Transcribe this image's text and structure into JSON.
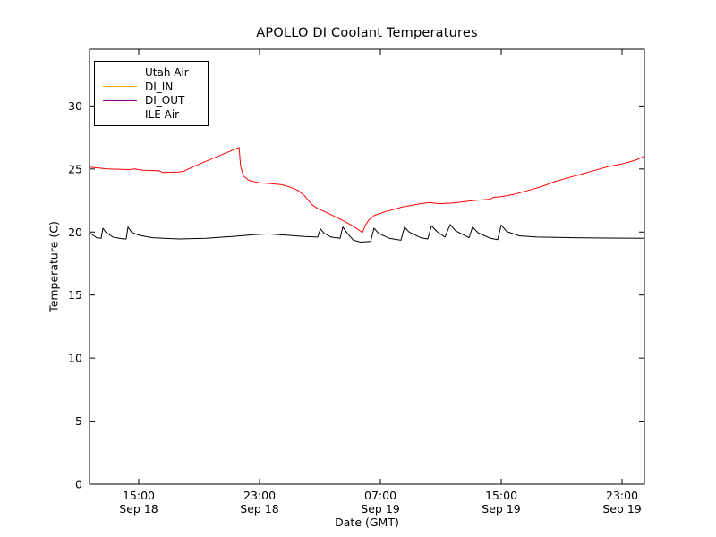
{
  "figure": {
    "title": "APOLLO DI Coolant Temperatures",
    "xlabel": "Date (GMT)",
    "ylabel": "Temperature (C)",
    "background_color": "#ffffff",
    "axis_color": "#000000"
  },
  "legend": {
    "position": "upper left",
    "items": [
      {
        "label": "Utah Air",
        "color": "#000000"
      },
      {
        "label": "DI_IN",
        "color": "#ffa500"
      },
      {
        "label": "DI_OUT",
        "color": "#800080"
      },
      {
        "label": "ILE Air",
        "color": "#ff0000"
      }
    ]
  },
  "chart_data": {
    "type": "line",
    "title": "APOLLO DI Coolant Temperatures",
    "xlabel": "Date (GMT)",
    "ylabel": "Temperature (C)",
    "grid": false,
    "legend_position": "upper left",
    "x_unit": "hours since Sep 18 00:00 GMT",
    "xlim": [
      11.74,
      48.48
    ],
    "ylim": [
      0,
      34.5
    ],
    "y_ticks": [
      0,
      5,
      10,
      15,
      20,
      25,
      30
    ],
    "x_ticks": [
      {
        "value": 15,
        "time": "15:00",
        "date": "Sep 18"
      },
      {
        "value": 23,
        "time": "23:00",
        "date": "Sep 18"
      },
      {
        "value": 31,
        "time": "07:00",
        "date": "Sep 19"
      },
      {
        "value": 39,
        "time": "15:00",
        "date": "Sep 19"
      },
      {
        "value": 47,
        "time": "23:00",
        "date": "Sep 19"
      }
    ],
    "series": [
      {
        "name": "Utah Air",
        "color": "#000000",
        "points": [
          [
            11.74,
            19.95
          ],
          [
            12.21,
            19.55
          ],
          [
            12.51,
            19.5
          ],
          [
            12.63,
            20.3
          ],
          [
            12.81,
            20.0
          ],
          [
            13.28,
            19.6
          ],
          [
            13.99,
            19.45
          ],
          [
            14.17,
            19.45
          ],
          [
            14.29,
            20.4
          ],
          [
            14.52,
            20.0
          ],
          [
            15.0,
            19.75
          ],
          [
            15.89,
            19.55
          ],
          [
            17.67,
            19.45
          ],
          [
            19.44,
            19.5
          ],
          [
            21.22,
            19.65
          ],
          [
            22.7,
            19.8
          ],
          [
            23.59,
            19.85
          ],
          [
            24.78,
            19.75
          ],
          [
            25.96,
            19.65
          ],
          [
            26.85,
            19.6
          ],
          [
            27.03,
            20.25
          ],
          [
            27.27,
            19.9
          ],
          [
            27.74,
            19.6
          ],
          [
            28.33,
            19.5
          ],
          [
            28.51,
            20.4
          ],
          [
            28.81,
            19.9
          ],
          [
            29.22,
            19.35
          ],
          [
            29.7,
            19.2
          ],
          [
            30.35,
            19.25
          ],
          [
            30.58,
            20.3
          ],
          [
            30.88,
            19.9
          ],
          [
            31.59,
            19.5
          ],
          [
            32.36,
            19.35
          ],
          [
            32.6,
            20.4
          ],
          [
            32.9,
            20.0
          ],
          [
            33.67,
            19.55
          ],
          [
            34.14,
            19.45
          ],
          [
            34.38,
            20.5
          ],
          [
            34.74,
            20.05
          ],
          [
            35.27,
            19.6
          ],
          [
            35.62,
            20.6
          ],
          [
            35.98,
            20.1
          ],
          [
            36.87,
            19.55
          ],
          [
            37.1,
            20.4
          ],
          [
            37.46,
            19.95
          ],
          [
            38.29,
            19.5
          ],
          [
            38.76,
            19.4
          ],
          [
            39.0,
            20.55
          ],
          [
            39.36,
            20.05
          ],
          [
            40.19,
            19.7
          ],
          [
            41.37,
            19.6
          ],
          [
            43.74,
            19.55
          ],
          [
            46.0,
            19.52
          ],
          [
            48.48,
            19.5
          ]
        ]
      },
      {
        "name": "DI_IN",
        "color": "#ffa500",
        "points": []
      },
      {
        "name": "DI_OUT",
        "color": "#800080",
        "points": []
      },
      {
        "name": "ILE Air",
        "color": "#ff0000",
        "points": [
          [
            11.74,
            25.15
          ],
          [
            12.93,
            25.0
          ],
          [
            14.41,
            24.95
          ],
          [
            14.7,
            25.0
          ],
          [
            15.29,
            24.9
          ],
          [
            16.36,
            24.85
          ],
          [
            16.6,
            24.72
          ],
          [
            17.67,
            24.75
          ],
          [
            17.96,
            24.82
          ],
          [
            18.85,
            25.3
          ],
          [
            20.04,
            25.9
          ],
          [
            20.93,
            26.35
          ],
          [
            21.64,
            26.7
          ],
          [
            21.75,
            25.2
          ],
          [
            21.93,
            24.45
          ],
          [
            22.29,
            24.1
          ],
          [
            23.0,
            23.9
          ],
          [
            23.59,
            23.85
          ],
          [
            24.48,
            23.75
          ],
          [
            25.07,
            23.55
          ],
          [
            25.55,
            23.3
          ],
          [
            25.96,
            22.9
          ],
          [
            26.44,
            22.2
          ],
          [
            26.85,
            21.85
          ],
          [
            27.44,
            21.55
          ],
          [
            28.04,
            21.2
          ],
          [
            28.63,
            20.85
          ],
          [
            29.22,
            20.45
          ],
          [
            29.64,
            20.1
          ],
          [
            29.81,
            19.95
          ],
          [
            29.99,
            20.5
          ],
          [
            30.23,
            20.95
          ],
          [
            30.58,
            21.3
          ],
          [
            31.3,
            21.6
          ],
          [
            32.48,
            22.0
          ],
          [
            33.67,
            22.25
          ],
          [
            34.26,
            22.35
          ],
          [
            34.85,
            22.25
          ],
          [
            35.74,
            22.3
          ],
          [
            37.22,
            22.5
          ],
          [
            38.29,
            22.6
          ],
          [
            38.47,
            22.75
          ],
          [
            39.0,
            22.8
          ],
          [
            39.89,
            23.0
          ],
          [
            40.78,
            23.3
          ],
          [
            41.67,
            23.6
          ],
          [
            42.56,
            24.0
          ],
          [
            43.44,
            24.3
          ],
          [
            44.33,
            24.6
          ],
          [
            45.22,
            24.9
          ],
          [
            46.11,
            25.2
          ],
          [
            47.0,
            25.4
          ],
          [
            47.89,
            25.7
          ],
          [
            48.36,
            25.95
          ],
          [
            48.48,
            26.05
          ]
        ]
      }
    ]
  }
}
